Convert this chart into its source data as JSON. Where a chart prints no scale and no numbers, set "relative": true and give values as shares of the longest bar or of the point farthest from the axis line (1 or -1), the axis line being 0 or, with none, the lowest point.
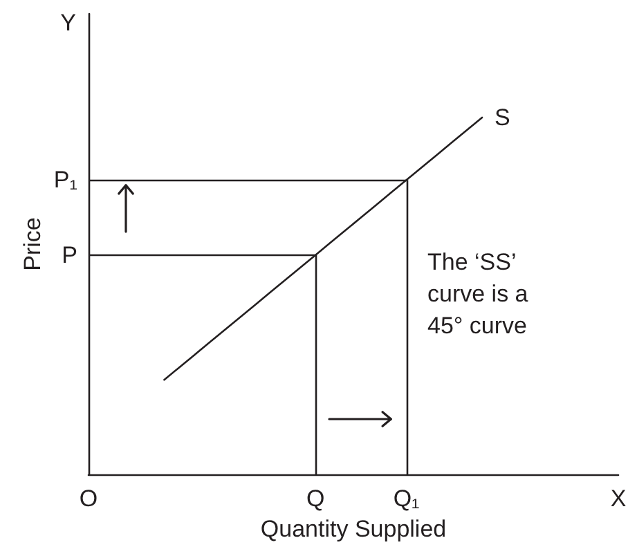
{
  "chart_data": {
    "type": "line",
    "relative": true,
    "xlabel": "Quantity Supplied",
    "ylabel": "Price",
    "categories": [
      "O",
      null,
      null,
      null,
      null,
      null,
      null,
      null,
      null,
      null,
      null,
      null,
      null,
      null,
      null,
      "Q",
      null,
      null,
      null,
      null,
      null,
      "Q₁",
      null,
      null,
      null,
      null,
      null,
      null,
      null,
      null,
      null,
      null,
      null,
      null,
      null,
      "X"
    ],
    "series": [
      {
        "name": "S",
        "color": "#231f20",
        "values": [
          null,
          null,
          null,
          null,
          null,
          0.265,
          0.3,
          0.335,
          0.37,
          0.405,
          0.44,
          0.475,
          0.51,
          0.545,
          0.58,
          0.615,
          0.65,
          0.685,
          0.72,
          0.755,
          0.79,
          0.825,
          0.86,
          0.895,
          0.93,
          0.965,
          1,
          null,
          null,
          null,
          null,
          null,
          null,
          null,
          null,
          null
        ]
      }
    ],
    "ref_lines": [
      {
        "axis": "y",
        "value": 0.615,
        "label": "P"
      },
      {
        "axis": "y",
        "value": 0.825,
        "label": "P₁"
      },
      {
        "axis": "x",
        "value": "Q"
      },
      {
        "axis": "x",
        "value": "Q₁"
      }
    ],
    "annotations": [
      "Y",
      "The ‘SS’ curve is a 45° curve"
    ],
    "marker": "none"
  }
}
